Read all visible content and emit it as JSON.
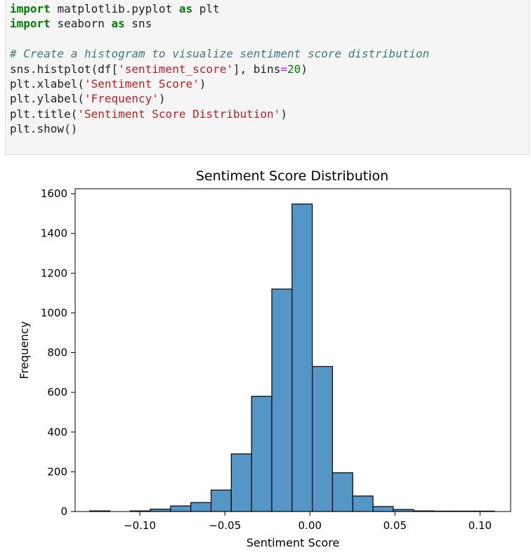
{
  "code_cell": {
    "imports": [
      {
        "keyword": "import",
        "module": "matplotlib.pyplot",
        "as": "as",
        "alias": "plt"
      },
      {
        "keyword": "import",
        "module": "seaborn",
        "as": "as",
        "alias": "sns"
      }
    ],
    "comment": "# Create a histogram to visualize sentiment score distribution",
    "histplot": {
      "call": "sns.histplot(df[",
      "arg": "'sentiment_score'",
      "mid": "], bins",
      "eq": "=",
      "num": "20",
      "end": ")"
    },
    "xlabel": {
      "call": "plt.xlabel(",
      "arg": "'Sentiment Score'",
      "end": ")"
    },
    "ylabel": {
      "call": "plt.ylabel(",
      "arg": "'Frequency'",
      "end": ")"
    },
    "title": {
      "call": "plt.title(",
      "arg": "'Sentiment Score Distribution'",
      "end": ")"
    },
    "show": "plt.show()"
  },
  "chart_data": {
    "type": "bar",
    "title": "Sentiment Score Distribution",
    "xlabel": "Sentiment Score",
    "ylabel": "Frequency",
    "bar_color": "#5497c6",
    "edge_color": "#000000",
    "bins": {
      "edges": [
        -0.1295,
        -0.1176,
        -0.1057,
        -0.0938,
        -0.0819,
        -0.07,
        -0.0581,
        -0.0462,
        -0.0343,
        -0.0224,
        -0.0105,
        0.0014,
        0.0133,
        0.0252,
        0.0371,
        0.049,
        0.0609,
        0.0728,
        0.0847,
        0.0966,
        0.1085
      ],
      "counts": [
        3,
        0,
        3,
        12,
        28,
        45,
        108,
        290,
        580,
        1120,
        1548,
        730,
        195,
        78,
        25,
        10,
        3,
        2,
        2,
        2
      ]
    },
    "xlim": [
      -0.138,
      0.118
    ],
    "ylim": [
      0,
      1625
    ],
    "xticks": [
      {
        "value": -0.1,
        "label": "−0.10"
      },
      {
        "value": -0.05,
        "label": "−0.05"
      },
      {
        "value": 0.0,
        "label": "0.00"
      },
      {
        "value": 0.05,
        "label": "0.05"
      },
      {
        "value": 0.1,
        "label": "0.10"
      }
    ],
    "yticks": [
      {
        "value": 0,
        "label": "0"
      },
      {
        "value": 200,
        "label": "200"
      },
      {
        "value": 400,
        "label": "400"
      },
      {
        "value": 600,
        "label": "600"
      },
      {
        "value": 800,
        "label": "800"
      },
      {
        "value": 1000,
        "label": "1000"
      },
      {
        "value": 1200,
        "label": "1200"
      },
      {
        "value": 1400,
        "label": "1400"
      },
      {
        "value": 1600,
        "label": "1600"
      }
    ]
  }
}
